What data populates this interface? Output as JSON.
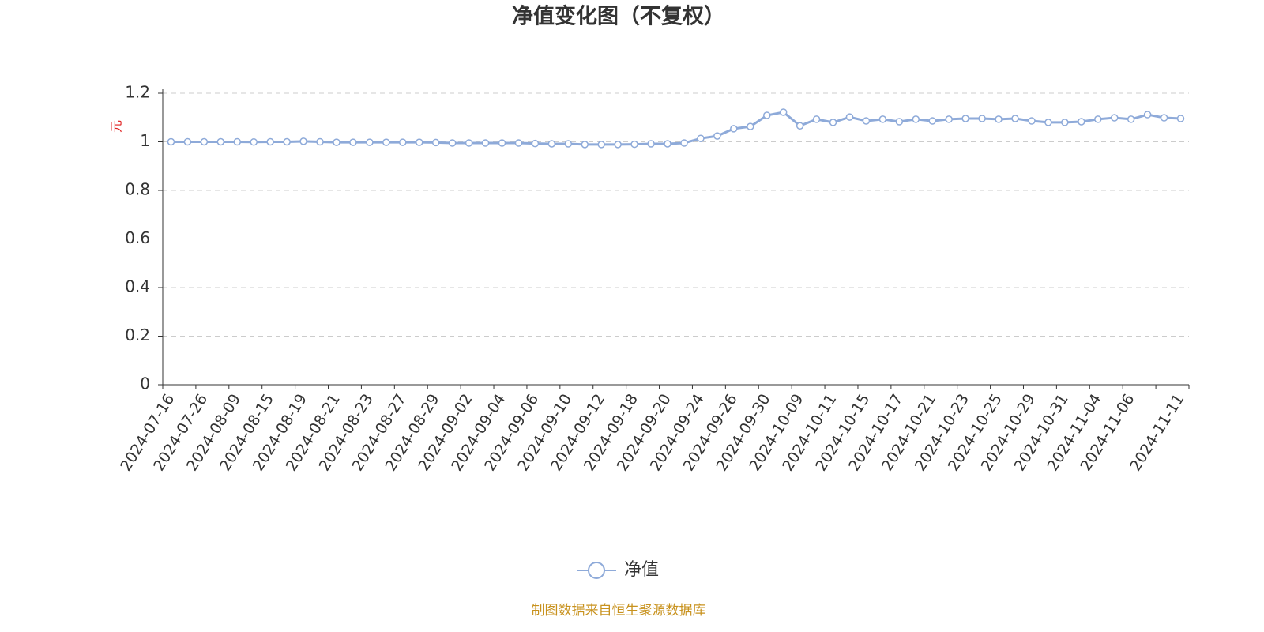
{
  "chart_data": {
    "type": "line",
    "title": "净值变化图（不复权）",
    "y_label": "元",
    "categories": [
      "2024-07-16",
      null,
      "2024-07-26",
      null,
      "2024-08-09",
      null,
      "2024-08-15",
      null,
      "2024-08-19",
      null,
      "2024-08-21",
      null,
      "2024-08-23",
      null,
      "2024-08-27",
      null,
      "2024-08-29",
      null,
      "2024-09-02",
      null,
      "2024-09-04",
      null,
      "2024-09-06",
      null,
      "2024-09-10",
      null,
      "2024-09-12",
      null,
      "2024-09-18",
      null,
      "2024-09-20",
      null,
      "2024-09-24",
      null,
      "2024-09-26",
      null,
      "2024-09-30",
      null,
      "2024-10-09",
      null,
      "2024-10-11",
      null,
      "2024-10-15",
      null,
      "2024-10-17",
      null,
      "2024-10-21",
      null,
      "2024-10-23",
      null,
      "2024-10-25",
      null,
      "2024-10-29",
      null,
      "2024-10-31",
      null,
      "2024-11-04",
      null,
      "2024-11-06",
      null,
      null,
      "2024-11-11"
    ],
    "series": [
      {
        "name": "净值",
        "color": "#8eaad9",
        "values": [
          1.0,
          1.0,
          1.0,
          1.0,
          1.0,
          0.999,
          1.0,
          1.0,
          1.002,
          1.0,
          0.998,
          0.998,
          0.998,
          0.998,
          0.998,
          0.998,
          0.997,
          0.995,
          0.995,
          0.995,
          0.995,
          0.995,
          0.993,
          0.992,
          0.992,
          0.989,
          0.989,
          0.989,
          0.99,
          0.992,
          0.992,
          0.995,
          1.014,
          1.024,
          1.054,
          1.063,
          1.109,
          1.122,
          1.066,
          1.093,
          1.08,
          1.102,
          1.086,
          1.093,
          1.083,
          1.093,
          1.086,
          1.093,
          1.096,
          1.096,
          1.093,
          1.096,
          1.086,
          1.08,
          1.08,
          1.083,
          1.093,
          1.099,
          1.093,
          1.112,
          1.099,
          1.096
        ]
      }
    ],
    "ylim": [
      0,
      1.2
    ],
    "yticks": [
      0,
      0.2,
      0.4,
      0.6,
      0.8,
      1,
      1.2
    ],
    "grid": true,
    "legend": "bottom",
    "source": "制图数据来自恒生聚源数据库"
  }
}
